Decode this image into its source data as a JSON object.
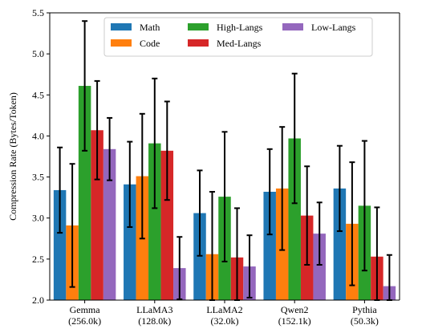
{
  "chart_data": {
    "type": "bar",
    "ylabel": "Compression Rate (Bytes/Token)",
    "ylim": [
      2.0,
      5.5
    ],
    "yticks": [
      "2.0",
      "2.5",
      "3.0",
      "3.5",
      "4.0",
      "4.5",
      "5.0",
      "5.5"
    ],
    "categories": [
      "Gemma",
      "LLaMA3",
      "LLaMA2",
      "Qwen2",
      "Pythia"
    ],
    "category_sublabels": [
      "(256.0k)",
      "(128.0k)",
      "(32.0k)",
      "(152.1k)",
      "(50.3k)"
    ],
    "legend_position": "top-center",
    "series": [
      {
        "name": "Math",
        "color": "#1f77b4",
        "values": [
          3.34,
          3.41,
          3.06,
          3.32,
          3.36
        ],
        "errors": [
          0.52,
          0.52,
          0.52,
          0.52,
          0.52
        ]
      },
      {
        "name": "Code",
        "color": "#ff7f0e",
        "values": [
          2.91,
          3.51,
          2.56,
          3.36,
          2.93
        ],
        "errors": [
          0.75,
          0.76,
          0.76,
          0.75,
          0.75
        ]
      },
      {
        "name": "High-Langs",
        "color": "#2ca02c",
        "values": [
          4.61,
          3.91,
          3.26,
          3.97,
          3.15
        ],
        "errors": [
          0.79,
          0.79,
          0.79,
          0.79,
          0.79
        ]
      },
      {
        "name": "Med-Langs",
        "color": "#d62728",
        "values": [
          4.07,
          3.82,
          2.52,
          3.03,
          2.53
        ],
        "errors": [
          0.6,
          0.6,
          0.6,
          0.6,
          0.6
        ]
      },
      {
        "name": "Low-Langs",
        "color": "#9467bd",
        "values": [
          3.84,
          2.39,
          2.41,
          2.81,
          2.17
        ],
        "errors": [
          0.38,
          0.38,
          0.38,
          0.38,
          0.38
        ]
      }
    ]
  }
}
